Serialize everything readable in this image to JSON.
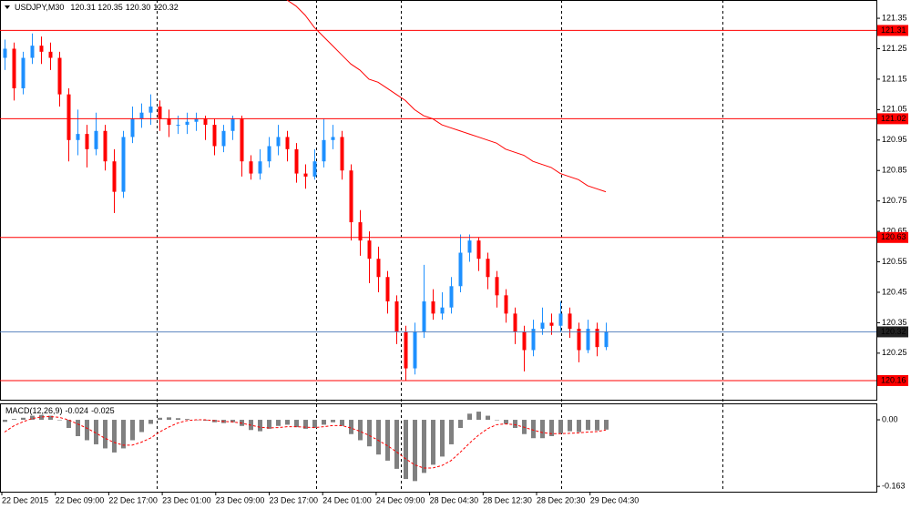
{
  "chart_data": {
    "type": "candlestick",
    "symbol": "USDJPY,M30",
    "header_values": [
      "120.31",
      "120.35",
      "120.30",
      "120.32"
    ],
    "bull_color": "#1e90ff",
    "bear_color": "#ff0000",
    "ylim": [
      120.1,
      121.41
    ],
    "yticks": [
      121.35,
      121.25,
      121.15,
      121.05,
      120.95,
      120.85,
      120.75,
      120.65,
      120.55,
      120.45,
      120.35,
      120.25
    ],
    "levels": {
      "color": "#ff0000",
      "values": [
        121.31,
        121.02,
        120.63,
        120.16
      ]
    },
    "current_price": {
      "color": "#4a78b8",
      "value": 120.32
    },
    "time_labels": [
      "22 Dec 2015",
      "22 Dec 09:00",
      "22 Dec 17:00",
      "23 Dec 01:00",
      "23 Dec 09:00",
      "23 Dec 17:00",
      "24 Dec 01:00",
      "24 Dec 09:00",
      "28 Dec 04:30",
      "28 Dec 12:30",
      "28 Dec 20:30",
      "29 Dec 04:30"
    ],
    "ohlc": [
      [
        121.22,
        121.28,
        121.18,
        121.25
      ],
      [
        121.25,
        121.27,
        121.08,
        121.12
      ],
      [
        121.12,
        121.24,
        121.1,
        121.22
      ],
      [
        121.22,
        121.3,
        121.2,
        121.26
      ],
      [
        121.26,
        121.29,
        121.2,
        121.24
      ],
      [
        121.24,
        121.27,
        121.18,
        121.22
      ],
      [
        121.22,
        121.24,
        121.06,
        121.1
      ],
      [
        121.1,
        121.12,
        120.88,
        120.95
      ],
      [
        120.95,
        121.05,
        120.9,
        120.97
      ],
      [
        120.97,
        121.0,
        120.86,
        120.92
      ],
      [
        120.92,
        121.04,
        120.9,
        120.98
      ],
      [
        120.98,
        121.0,
        120.85,
        120.88
      ],
      [
        120.88,
        120.92,
        120.71,
        120.78
      ],
      [
        120.78,
        120.98,
        120.76,
        120.96
      ],
      [
        120.96,
        121.06,
        120.94,
        121.02
      ],
      [
        121.02,
        121.07,
        120.99,
        121.04
      ],
      [
        121.04,
        121.1,
        121.0,
        121.06
      ],
      [
        121.06,
        121.08,
        120.98,
        121.02
      ],
      [
        121.02,
        121.05,
        120.96,
        121.0
      ],
      [
        121.0,
        121.03,
        120.97,
        121.0
      ],
      [
        121.0,
        121.04,
        120.97,
        121.01
      ],
      [
        121.01,
        121.04,
        120.98,
        121.02
      ],
      [
        121.02,
        121.03,
        120.95,
        121.0
      ],
      [
        121.0,
        121.02,
        120.9,
        120.93
      ],
      [
        120.93,
        121.0,
        120.91,
        120.98
      ],
      [
        120.98,
        121.03,
        120.95,
        121.02
      ],
      [
        121.02,
        121.03,
        120.83,
        120.88
      ],
      [
        120.88,
        120.9,
        120.82,
        120.84
      ],
      [
        120.84,
        120.92,
        120.82,
        120.88
      ],
      [
        120.88,
        120.96,
        120.86,
        120.93
      ],
      [
        120.93,
        121.0,
        120.9,
        120.96
      ],
      [
        120.96,
        120.98,
        120.88,
        120.92
      ],
      [
        120.92,
        120.94,
        120.81,
        120.84
      ],
      [
        120.84,
        120.87,
        120.79,
        120.83
      ],
      [
        120.83,
        120.92,
        120.82,
        120.88
      ],
      [
        120.88,
        121.02,
        120.86,
        120.95
      ],
      [
        120.95,
        121.0,
        120.92,
        120.96
      ],
      [
        120.96,
        120.98,
        120.82,
        120.85
      ],
      [
        120.85,
        120.87,
        120.62,
        120.68
      ],
      [
        120.68,
        120.72,
        120.57,
        120.62
      ],
      [
        120.62,
        120.65,
        120.48,
        120.56
      ],
      [
        120.56,
        120.6,
        120.45,
        120.5
      ],
      [
        120.5,
        120.52,
        120.38,
        120.42
      ],
      [
        120.42,
        120.44,
        120.28,
        120.32
      ],
      [
        120.32,
        120.34,
        120.16,
        120.2
      ],
      [
        120.2,
        120.35,
        120.18,
        120.32
      ],
      [
        120.32,
        120.54,
        120.3,
        120.42
      ],
      [
        120.42,
        120.46,
        120.36,
        120.38
      ],
      [
        120.38,
        120.45,
        120.36,
        120.4
      ],
      [
        120.4,
        120.5,
        120.38,
        120.47
      ],
      [
        120.47,
        120.64,
        120.45,
        120.58
      ],
      [
        120.58,
        120.64,
        120.55,
        120.62
      ],
      [
        120.62,
        120.63,
        120.52,
        120.56
      ],
      [
        120.56,
        120.58,
        120.46,
        120.5
      ],
      [
        120.5,
        120.52,
        120.4,
        120.44
      ],
      [
        120.44,
        120.46,
        120.35,
        120.38
      ],
      [
        120.38,
        120.4,
        120.28,
        120.32
      ],
      [
        120.32,
        120.34,
        120.19,
        120.26
      ],
      [
        120.26,
        120.36,
        120.24,
        120.33
      ],
      [
        120.33,
        120.4,
        120.31,
        120.35
      ],
      [
        120.35,
        120.38,
        120.31,
        120.34
      ],
      [
        120.34,
        120.42,
        120.32,
        120.38
      ],
      [
        120.38,
        120.4,
        120.3,
        120.33
      ],
      [
        120.33,
        120.35,
        120.22,
        120.26
      ],
      [
        120.26,
        120.36,
        120.25,
        120.33
      ],
      [
        120.33,
        120.35,
        120.24,
        120.27
      ],
      [
        120.27,
        120.35,
        120.26,
        120.32
      ]
    ],
    "moving_average": {
      "color": "#ff0000",
      "values": [
        null,
        null,
        null,
        null,
        null,
        null,
        null,
        null,
        null,
        null,
        null,
        null,
        null,
        null,
        null,
        null,
        null,
        null,
        null,
        null,
        null,
        null,
        null,
        null,
        null,
        null,
        null,
        null,
        null,
        null,
        null,
        121.41,
        121.39,
        121.36,
        121.32,
        121.29,
        121.26,
        121.23,
        121.2,
        121.18,
        121.15,
        121.14,
        121.12,
        121.1,
        121.08,
        121.05,
        121.03,
        121.02,
        121.0,
        120.99,
        120.98,
        120.97,
        120.96,
        120.95,
        120.94,
        120.92,
        120.91,
        120.9,
        120.88,
        120.87,
        120.86,
        120.84,
        120.83,
        120.82,
        120.8,
        120.79,
        120.78
      ]
    },
    "macd": {
      "title": "MACD(12,26,9)",
      "ylim": [
        -0.176,
        0.038
      ],
      "yticks": [
        {
          "value": 0,
          "label": "0.00"
        },
        -0.163
      ],
      "histogram_color": "#808080",
      "signal_color": "#ff0000",
      "histogram": [
        -0.005,
        0.002,
        0.005,
        0.01,
        0.012,
        0.01,
        0.0,
        -0.02,
        -0.04,
        -0.05,
        -0.06,
        -0.07,
        -0.08,
        -0.07,
        -0.05,
        -0.03,
        -0.01,
        0.005,
        0.006,
        0.004,
        0.002,
        0.0,
        -0.002,
        -0.006,
        -0.008,
        -0.006,
        -0.015,
        -0.025,
        -0.028,
        -0.022,
        -0.015,
        -0.012,
        -0.018,
        -0.022,
        -0.02,
        -0.012,
        -0.006,
        -0.015,
        -0.035,
        -0.05,
        -0.065,
        -0.085,
        -0.1,
        -0.12,
        -0.145,
        -0.15,
        -0.13,
        -0.11,
        -0.09,
        -0.06,
        -0.02,
        0.015,
        0.02,
        0.01,
        0.0,
        -0.01,
        -0.02,
        -0.035,
        -0.045,
        -0.045,
        -0.04,
        -0.033,
        -0.028,
        -0.03,
        -0.025,
        -0.026,
        -0.024
      ],
      "signal": [
        -0.03,
        -0.015,
        -0.005,
        0.003,
        0.007,
        0.008,
        0.006,
        0.0,
        -0.01,
        -0.02,
        -0.032,
        -0.045,
        -0.055,
        -0.062,
        -0.062,
        -0.055,
        -0.045,
        -0.03,
        -0.018,
        -0.008,
        -0.002,
        0.0,
        0.0,
        -0.002,
        -0.004,
        -0.005,
        -0.008,
        -0.013,
        -0.018,
        -0.02,
        -0.019,
        -0.017,
        -0.017,
        -0.018,
        -0.019,
        -0.017,
        -0.014,
        -0.014,
        -0.02,
        -0.028,
        -0.038,
        -0.05,
        -0.063,
        -0.078,
        -0.095,
        -0.11,
        -0.118,
        -0.118,
        -0.112,
        -0.1,
        -0.08,
        -0.058,
        -0.038,
        -0.022,
        -0.012,
        -0.01,
        -0.012,
        -0.018,
        -0.025,
        -0.031,
        -0.034,
        -0.034,
        -0.033,
        -0.032,
        -0.03,
        -0.029,
        -0.025
      ]
    }
  }
}
